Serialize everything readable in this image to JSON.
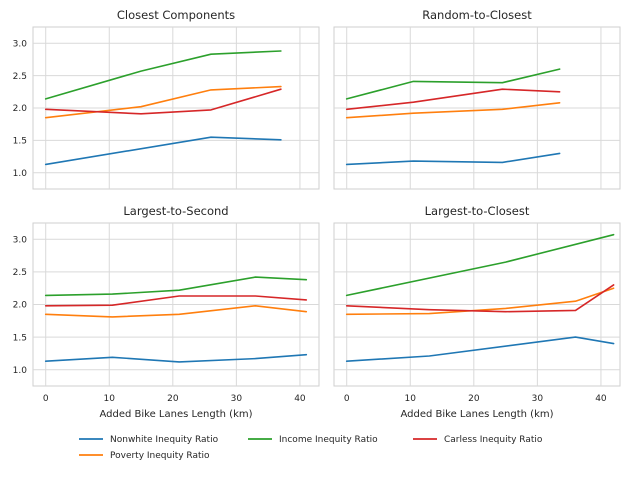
{
  "chart_data": [
    {
      "type": "line",
      "title": "Closest Components",
      "xlabel": "",
      "ylabel": "",
      "xlim": [
        -2,
        43
      ],
      "ylim": [
        0.75,
        3.25
      ],
      "xticks": [
        "0",
        "10",
        "20",
        "30",
        "40"
      ],
      "yticks": [
        "1.0",
        "1.5",
        "2.0",
        "2.5",
        "3.0"
      ],
      "show_xticklabels": false,
      "show_yticklabels": true,
      "grid": true,
      "series": [
        {
          "name": "Nonwhite Inequity Ratio",
          "color": "#1f77b4",
          "x": [
            0,
            26,
            37
          ],
          "y": [
            1.13,
            1.55,
            1.51
          ]
        },
        {
          "name": "Poverty Inequity Ratio",
          "color": "#ff7f0e",
          "x": [
            0,
            15,
            26,
            37
          ],
          "y": [
            1.85,
            2.02,
            2.28,
            2.33
          ]
        },
        {
          "name": "Income Inequity Ratio",
          "color": "#2ca02c",
          "x": [
            0,
            15,
            26,
            37
          ],
          "y": [
            2.14,
            2.57,
            2.83,
            2.88
          ]
        },
        {
          "name": "Carless Inequity Ratio",
          "color": "#d62728",
          "x": [
            0,
            15,
            26,
            37
          ],
          "y": [
            1.98,
            1.91,
            1.97,
            2.29
          ]
        }
      ]
    },
    {
      "type": "line",
      "title": "Random-to-Closest",
      "xlabel": "",
      "ylabel": "",
      "xlim": [
        -2,
        43
      ],
      "ylim": [
        0.75,
        3.25
      ],
      "xticks": [
        "0",
        "10",
        "20",
        "30",
        "40"
      ],
      "yticks": [
        "1.0",
        "1.5",
        "2.0",
        "2.5",
        "3.0"
      ],
      "show_xticklabels": false,
      "show_yticklabels": false,
      "grid": true,
      "series": [
        {
          "name": "Nonwhite Inequity Ratio",
          "color": "#1f77b4",
          "x": [
            0,
            10.5,
            24.5,
            33.5
          ],
          "y": [
            1.13,
            1.18,
            1.16,
            1.3
          ]
        },
        {
          "name": "Poverty Inequity Ratio",
          "color": "#ff7f0e",
          "x": [
            0,
            10.5,
            24.5,
            33.5
          ],
          "y": [
            1.85,
            1.92,
            1.98,
            2.08
          ]
        },
        {
          "name": "Income Inequity Ratio",
          "color": "#2ca02c",
          "x": [
            0,
            10.5,
            24.5,
            33.5
          ],
          "y": [
            2.14,
            2.41,
            2.39,
            2.6
          ]
        },
        {
          "name": "Carless Inequity Ratio",
          "color": "#d62728",
          "x": [
            0,
            10.5,
            24.5,
            33.5
          ],
          "y": [
            1.98,
            2.09,
            2.29,
            2.25
          ]
        }
      ]
    },
    {
      "type": "line",
      "title": "Largest-to-Second",
      "xlabel": "Added Bike Lanes Length (km)",
      "ylabel": "",
      "xlim": [
        -2,
        43
      ],
      "ylim": [
        0.75,
        3.25
      ],
      "xticks": [
        "0",
        "10",
        "20",
        "30",
        "40"
      ],
      "yticks": [
        "1.0",
        "1.5",
        "2.0",
        "2.5",
        "3.0"
      ],
      "show_xticklabels": true,
      "show_yticklabels": true,
      "grid": true,
      "series": [
        {
          "name": "Nonwhite Inequity Ratio",
          "color": "#1f77b4",
          "x": [
            0,
            10.5,
            21,
            33,
            41
          ],
          "y": [
            1.13,
            1.19,
            1.12,
            1.17,
            1.23
          ]
        },
        {
          "name": "Poverty Inequity Ratio",
          "color": "#ff7f0e",
          "x": [
            0,
            10.5,
            21,
            33,
            41
          ],
          "y": [
            1.85,
            1.81,
            1.85,
            1.98,
            1.89
          ]
        },
        {
          "name": "Income Inequity Ratio",
          "color": "#2ca02c",
          "x": [
            0,
            10.5,
            21,
            33,
            41
          ],
          "y": [
            2.14,
            2.16,
            2.22,
            2.42,
            2.38
          ]
        },
        {
          "name": "Carless Inequity Ratio",
          "color": "#d62728",
          "x": [
            0,
            10.5,
            21,
            33,
            41
          ],
          "y": [
            1.98,
            1.99,
            2.13,
            2.13,
            2.07
          ]
        }
      ]
    },
    {
      "type": "line",
      "title": "Largest-to-Closest",
      "xlabel": "Added Bike Lanes Length (km)",
      "ylabel": "",
      "xlim": [
        -2,
        43
      ],
      "ylim": [
        0.75,
        3.25
      ],
      "xticks": [
        "0",
        "10",
        "20",
        "30",
        "40"
      ],
      "yticks": [
        "1.0",
        "1.5",
        "2.0",
        "2.5",
        "3.0"
      ],
      "show_xticklabels": true,
      "show_yticklabels": false,
      "grid": true,
      "series": [
        {
          "name": "Nonwhite Inequity Ratio",
          "color": "#1f77b4",
          "x": [
            0,
            13,
            36,
            42
          ],
          "y": [
            1.13,
            1.21,
            1.5,
            1.4
          ]
        },
        {
          "name": "Poverty Inequity Ratio",
          "color": "#ff7f0e",
          "x": [
            0,
            13,
            25,
            36,
            42
          ],
          "y": [
            1.85,
            1.86,
            1.94,
            2.05,
            2.25
          ]
        },
        {
          "name": "Income Inequity Ratio",
          "color": "#2ca02c",
          "x": [
            0,
            25,
            42
          ],
          "y": [
            2.14,
            2.65,
            3.07
          ]
        },
        {
          "name": "Carless Inequity Ratio",
          "color": "#d62728",
          "x": [
            0,
            13,
            25,
            36,
            42
          ],
          "y": [
            1.98,
            1.92,
            1.89,
            1.91,
            2.3
          ]
        }
      ]
    }
  ],
  "legend": {
    "placement": "bottom",
    "entries": [
      {
        "label": "Nonwhite Inequity Ratio",
        "color": "#1f77b4"
      },
      {
        "label": "Poverty Inequity Ratio",
        "color": "#ff7f0e"
      },
      {
        "label": "Income Inequity Ratio",
        "color": "#2ca02c"
      },
      {
        "label": "Carless Inequity Ratio",
        "color": "#d62728"
      }
    ]
  }
}
